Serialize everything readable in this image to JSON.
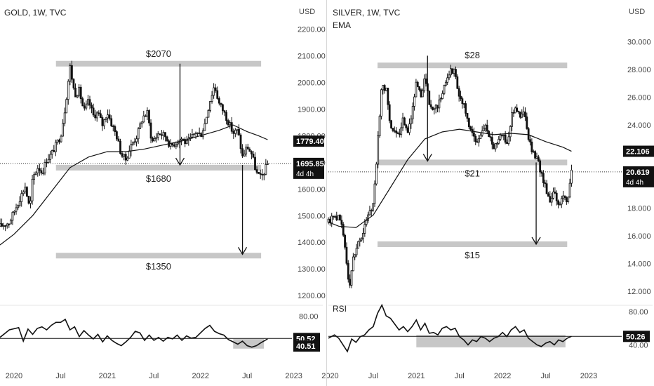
{
  "colors": {
    "candle": "#111111",
    "ema": "#111111",
    "zone": "#c7c7c7",
    "axis_text": "#444444",
    "price_tag": "#111111",
    "price_tag_text": "#ffffff",
    "separator": "#e6e6e6"
  },
  "chart_data": [
    {
      "type": "candlestick",
      "title": "GOLD, 1W, TVC",
      "currency": "USD",
      "y_ticks": [
        "2200.00",
        "2100.00",
        "2000.00",
        "1900.00",
        "1800.00",
        "1700.00",
        "1600.00",
        "1500.00",
        "1400.00",
        "1300.00",
        "1200.00"
      ],
      "ylim": [
        1190,
        2230
      ],
      "price_tags": [
        {
          "label": "1779.40",
          "value": 1779.4
        },
        {
          "label": "1695.85",
          "value": 1695.85,
          "sub": "4d 4h"
        }
      ],
      "current_price_line": 1695.85,
      "x_ticks": [
        "2020",
        "Jul",
        "2021",
        "Jul",
        "2022",
        "Jul",
        "2023"
      ],
      "xlim": [
        2019.85,
        2022.95
      ],
      "x_tick_values": [
        2020.0,
        2020.5,
        2021.0,
        2021.5,
        2022.0,
        2022.5,
        2023.0
      ],
      "zones": [
        {
          "label": "$2070",
          "value": 2070,
          "x0": 2020.45,
          "x1": 2022.65
        },
        {
          "label": "$1680",
          "value": 1680,
          "x0": 2020.45,
          "x1": 2022.65
        },
        {
          "label": "$1350",
          "value": 1350,
          "x0": 2020.45,
          "x1": 2022.65
        }
      ],
      "arrows": [
        {
          "x": 2021.78,
          "from": 2070,
          "to": 1690
        },
        {
          "x": 2022.45,
          "from": 1690,
          "to": 1355
        }
      ],
      "ohlc_path": [
        [
          2019.85,
          1460
        ],
        [
          2019.95,
          1475
        ],
        [
          2020.05,
          1555
        ],
        [
          2020.12,
          1610
        ],
        [
          2020.17,
          1520
        ],
        [
          2020.2,
          1640
        ],
        [
          2020.26,
          1685
        ],
        [
          2020.3,
          1660
        ],
        [
          2020.35,
          1710
        ],
        [
          2020.4,
          1730
        ],
        [
          2020.45,
          1765
        ],
        [
          2020.5,
          1800
        ],
        [
          2020.55,
          1910
        ],
        [
          2020.6,
          2060
        ],
        [
          2020.65,
          1955
        ],
        [
          2020.7,
          1970
        ],
        [
          2020.75,
          1890
        ],
        [
          2020.8,
          1930
        ],
        [
          2020.85,
          1875
        ],
        [
          2020.9,
          1885
        ],
        [
          2020.95,
          1840
        ],
        [
          2021.0,
          1890
        ],
        [
          2021.05,
          1840
        ],
        [
          2021.1,
          1800
        ],
        [
          2021.15,
          1730
        ],
        [
          2021.2,
          1710
        ],
        [
          2021.25,
          1760
        ],
        [
          2021.32,
          1800
        ],
        [
          2021.38,
          1870
        ],
        [
          2021.43,
          1885
        ],
        [
          2021.48,
          1775
        ],
        [
          2021.55,
          1810
        ],
        [
          2021.62,
          1800
        ],
        [
          2021.68,
          1760
        ],
        [
          2021.75,
          1780
        ],
        [
          2021.8,
          1790
        ],
        [
          2021.85,
          1770
        ],
        [
          2021.9,
          1790
        ],
        [
          2021.95,
          1815
        ],
        [
          2022.0,
          1800
        ],
        [
          2022.05,
          1850
        ],
        [
          2022.1,
          1930
        ],
        [
          2022.15,
          1990
        ],
        [
          2022.2,
          1920
        ],
        [
          2022.25,
          1890
        ],
        [
          2022.3,
          1850
        ],
        [
          2022.35,
          1810
        ],
        [
          2022.4,
          1820
        ],
        [
          2022.45,
          1720
        ],
        [
          2022.5,
          1760
        ],
        [
          2022.55,
          1730
        ],
        [
          2022.6,
          1660
        ],
        [
          2022.65,
          1640
        ],
        [
          2022.72,
          1695
        ]
      ],
      "ema": [
        [
          2019.85,
          1390
        ],
        [
          2020.0,
          1430
        ],
        [
          2020.2,
          1500
        ],
        [
          2020.4,
          1590
        ],
        [
          2020.6,
          1680
        ],
        [
          2020.8,
          1720
        ],
        [
          2021.0,
          1740
        ],
        [
          2021.2,
          1740
        ],
        [
          2021.4,
          1750
        ],
        [
          2021.6,
          1765
        ],
        [
          2021.8,
          1780
        ],
        [
          2022.0,
          1800
        ],
        [
          2022.2,
          1820
        ],
        [
          2022.35,
          1840
        ],
        [
          2022.5,
          1815
        ],
        [
          2022.62,
          1800
        ],
        [
          2022.72,
          1785
        ]
      ],
      "rsi": {
        "label": "",
        "y_ticks": [
          "80.00",
          "40.00"
        ],
        "ylim": [
          20,
          90
        ],
        "tags": [
          {
            "label": "50.52",
            "value": 50.52
          },
          {
            "label": "40.51",
            "value": 40.51
          }
        ],
        "zone": {
          "y0": 37,
          "y1": 50,
          "x0": 2022.35,
          "x1": 2022.68
        },
        "line": [
          [
            2019.85,
            52
          ],
          [
            2019.95,
            62
          ],
          [
            2020.05,
            65
          ],
          [
            2020.1,
            47
          ],
          [
            2020.15,
            63
          ],
          [
            2020.2,
            56
          ],
          [
            2020.25,
            64
          ],
          [
            2020.3,
            66
          ],
          [
            2020.35,
            62
          ],
          [
            2020.4,
            68
          ],
          [
            2020.45,
            72
          ],
          [
            2020.5,
            72
          ],
          [
            2020.55,
            76
          ],
          [
            2020.6,
            62
          ],
          [
            2020.65,
            66
          ],
          [
            2020.7,
            53
          ],
          [
            2020.75,
            61
          ],
          [
            2020.8,
            55
          ],
          [
            2020.85,
            50
          ],
          [
            2020.9,
            56
          ],
          [
            2020.95,
            46
          ],
          [
            2021.0,
            54
          ],
          [
            2021.05,
            48
          ],
          [
            2021.1,
            44
          ],
          [
            2021.15,
            41
          ],
          [
            2021.2,
            46
          ],
          [
            2021.25,
            52
          ],
          [
            2021.3,
            60
          ],
          [
            2021.35,
            58
          ],
          [
            2021.4,
            48
          ],
          [
            2021.45,
            55
          ],
          [
            2021.5,
            48
          ],
          [
            2021.55,
            52
          ],
          [
            2021.6,
            47
          ],
          [
            2021.65,
            52
          ],
          [
            2021.7,
            50
          ],
          [
            2021.75,
            55
          ],
          [
            2021.8,
            48
          ],
          [
            2021.85,
            54
          ],
          [
            2021.9,
            51
          ],
          [
            2021.95,
            52
          ],
          [
            2022.0,
            58
          ],
          [
            2022.05,
            64
          ],
          [
            2022.1,
            68
          ],
          [
            2022.15,
            60
          ],
          [
            2022.2,
            57
          ],
          [
            2022.25,
            55
          ],
          [
            2022.3,
            49
          ],
          [
            2022.35,
            46
          ],
          [
            2022.4,
            43
          ],
          [
            2022.45,
            47
          ],
          [
            2022.5,
            41
          ],
          [
            2022.55,
            39
          ],
          [
            2022.6,
            41
          ],
          [
            2022.65,
            45
          ],
          [
            2022.72,
            50
          ]
        ]
      }
    },
    {
      "type": "candlestick",
      "title": "SILVER, 1W, TVC",
      "indicator": "EMA",
      "currency": "USD",
      "y_ticks": [
        "30.000",
        "28.000",
        "26.000",
        "24.000",
        "22.000",
        "20.000",
        "18.000",
        "16.000",
        "14.000",
        "12.000"
      ],
      "ylim": [
        11.5,
        31.5
      ],
      "price_tags": [
        {
          "label": "22.106",
          "value": 22.106
        },
        {
          "label": "20.619",
          "value": 20.619,
          "sub": "4d 4h"
        }
      ],
      "current_price_line": 20.619,
      "x_ticks": [
        "2020",
        "Jul",
        "2021",
        "Jul",
        "2022",
        "Jul",
        "2023"
      ],
      "xlim": [
        2019.98,
        2023.35
      ],
      "x_tick_values": [
        2020.0,
        2020.5,
        2021.0,
        2021.5,
        2022.0,
        2022.5,
        2023.0
      ],
      "zones": [
        {
          "label": "$28",
          "value": 28.3,
          "x0": 2020.55,
          "x1": 2022.75
        },
        {
          "label": "$21",
          "value": 21.3,
          "x0": 2020.55,
          "x1": 2022.75
        },
        {
          "label": "$15",
          "value": 15.4,
          "x0": 2020.55,
          "x1": 2022.75
        }
      ],
      "arrows": [
        {
          "x": 2021.13,
          "from": 29.0,
          "to": 21.4
        },
        {
          "x": 2022.39,
          "from": 21.3,
          "to": 15.4
        }
      ],
      "ohlc_path": [
        [
          2019.98,
          17.0
        ],
        [
          2020.05,
          17.5
        ],
        [
          2020.12,
          17.2
        ],
        [
          2020.18,
          15.0
        ],
        [
          2020.22,
          12.0
        ],
        [
          2020.27,
          14.5
        ],
        [
          2020.32,
          15.5
        ],
        [
          2020.38,
          16.0
        ],
        [
          2020.43,
          17.5
        ],
        [
          2020.5,
          18.3
        ],
        [
          2020.55,
          22.5
        ],
        [
          2020.6,
          27.0
        ],
        [
          2020.65,
          26.5
        ],
        [
          2020.7,
          24.0
        ],
        [
          2020.75,
          23.5
        ],
        [
          2020.8,
          23.0
        ],
        [
          2020.85,
          24.5
        ],
        [
          2020.9,
          23.5
        ],
        [
          2020.95,
          25.0
        ],
        [
          2021.0,
          27.0
        ],
        [
          2021.05,
          26.0
        ],
        [
          2021.1,
          27.5
        ],
        [
          2021.15,
          25.5
        ],
        [
          2021.2,
          25.0
        ],
        [
          2021.25,
          25.5
        ],
        [
          2021.3,
          26.0
        ],
        [
          2021.35,
          27.5
        ],
        [
          2021.4,
          28.0
        ],
        [
          2021.45,
          27.8
        ],
        [
          2021.5,
          26.0
        ],
        [
          2021.55,
          25.5
        ],
        [
          2021.6,
          24.0
        ],
        [
          2021.65,
          23.5
        ],
        [
          2021.7,
          22.5
        ],
        [
          2021.75,
          23.5
        ],
        [
          2021.8,
          24.0
        ],
        [
          2021.85,
          23.0
        ],
        [
          2021.9,
          22.5
        ],
        [
          2021.95,
          23.0
        ],
        [
          2022.0,
          23.5
        ],
        [
          2022.05,
          22.5
        ],
        [
          2022.1,
          24.5
        ],
        [
          2022.15,
          25.5
        ],
        [
          2022.2,
          24.5
        ],
        [
          2022.25,
          25.0
        ],
        [
          2022.3,
          23.0
        ],
        [
          2022.35,
          22.0
        ],
        [
          2022.4,
          21.5
        ],
        [
          2022.45,
          20.5
        ],
        [
          2022.5,
          19.5
        ],
        [
          2022.55,
          18.5
        ],
        [
          2022.6,
          19.5
        ],
        [
          2022.65,
          18.0
        ],
        [
          2022.7,
          19.0
        ],
        [
          2022.75,
          18.5
        ],
        [
          2022.8,
          20.619
        ]
      ],
      "ema": [
        [
          2019.98,
          17.0
        ],
        [
          2020.1,
          16.7
        ],
        [
          2020.3,
          16.6
        ],
        [
          2020.5,
          17.5
        ],
        [
          2020.7,
          19.5
        ],
        [
          2020.9,
          21.5
        ],
        [
          2021.1,
          23.0
        ],
        [
          2021.3,
          23.5
        ],
        [
          2021.5,
          23.7
        ],
        [
          2021.7,
          23.5
        ],
        [
          2021.9,
          23.3
        ],
        [
          2022.1,
          23.4
        ],
        [
          2022.3,
          23.3
        ],
        [
          2022.5,
          22.8
        ],
        [
          2022.7,
          22.4
        ],
        [
          2022.8,
          22.1
        ]
      ],
      "rsi": {
        "label": "RSI",
        "y_ticks": [
          "80.00",
          "40.00"
        ],
        "ylim": [
          20,
          92
        ],
        "tags": [
          {
            "label": "50.26",
            "value": 50.26
          }
        ],
        "zone": {
          "y0": 37,
          "y1": 52,
          "x0": 2021.0,
          "x1": 2022.73
        },
        "line": [
          [
            2019.98,
            48
          ],
          [
            2020.05,
            52
          ],
          [
            2020.1,
            48
          ],
          [
            2020.15,
            40
          ],
          [
            2020.2,
            32
          ],
          [
            2020.25,
            47
          ],
          [
            2020.3,
            43
          ],
          [
            2020.35,
            50
          ],
          [
            2020.4,
            52
          ],
          [
            2020.45,
            58
          ],
          [
            2020.5,
            62
          ],
          [
            2020.55,
            78
          ],
          [
            2020.6,
            88
          ],
          [
            2020.65,
            75
          ],
          [
            2020.7,
            72
          ],
          [
            2020.75,
            65
          ],
          [
            2020.8,
            58
          ],
          [
            2020.85,
            62
          ],
          [
            2020.9,
            56
          ],
          [
            2020.95,
            62
          ],
          [
            2021.0,
            70
          ],
          [
            2021.05,
            58
          ],
          [
            2021.1,
            66
          ],
          [
            2021.15,
            54
          ],
          [
            2021.2,
            55
          ],
          [
            2021.25,
            52
          ],
          [
            2021.3,
            60
          ],
          [
            2021.35,
            62
          ],
          [
            2021.4,
            58
          ],
          [
            2021.45,
            60
          ],
          [
            2021.5,
            50
          ],
          [
            2021.55,
            46
          ],
          [
            2021.6,
            40
          ],
          [
            2021.65,
            46
          ],
          [
            2021.7,
            44
          ],
          [
            2021.75,
            50
          ],
          [
            2021.8,
            48
          ],
          [
            2021.85,
            44
          ],
          [
            2021.9,
            48
          ],
          [
            2021.95,
            50
          ],
          [
            2022.0,
            55
          ],
          [
            2022.05,
            50
          ],
          [
            2022.1,
            58
          ],
          [
            2022.15,
            62
          ],
          [
            2022.2,
            55
          ],
          [
            2022.25,
            58
          ],
          [
            2022.3,
            48
          ],
          [
            2022.35,
            44
          ],
          [
            2022.4,
            40
          ],
          [
            2022.45,
            38
          ],
          [
            2022.5,
            42
          ],
          [
            2022.55,
            44
          ],
          [
            2022.6,
            40
          ],
          [
            2022.65,
            46
          ],
          [
            2022.7,
            44
          ],
          [
            2022.75,
            48
          ],
          [
            2022.8,
            50.26
          ]
        ]
      }
    }
  ]
}
